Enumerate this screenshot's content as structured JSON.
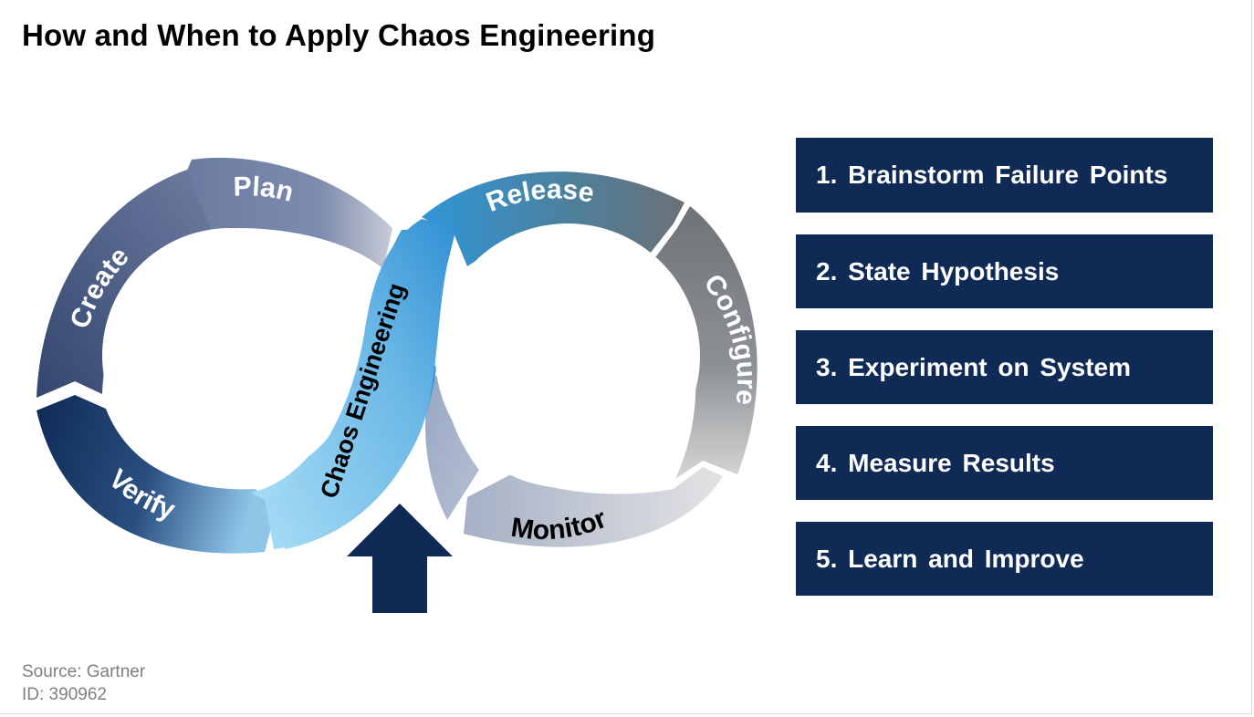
{
  "title": "How and When to Apply Chaos Engineering",
  "diagram": {
    "left_loop": [
      "Plan",
      "Create",
      "Verify"
    ],
    "right_loop": [
      "Release",
      "Configure",
      "Monitor"
    ],
    "center": "Chaos Engineering",
    "colors": {
      "navy": "#0f2a55",
      "slate": "#6f7ea3",
      "light_blue": "#9fd8f4",
      "bright_blue": "#3a9ad9",
      "gray": "#7b8188",
      "light_gray": "#d3d3d3"
    }
  },
  "steps": [
    "1. Brainstorm Failure Points",
    "2. State Hypothesis",
    "3. Experiment on System",
    "4. Measure Results",
    "5. Learn and Improve"
  ],
  "footer": {
    "source": "Source: Gartner",
    "id": "ID: 390962"
  }
}
